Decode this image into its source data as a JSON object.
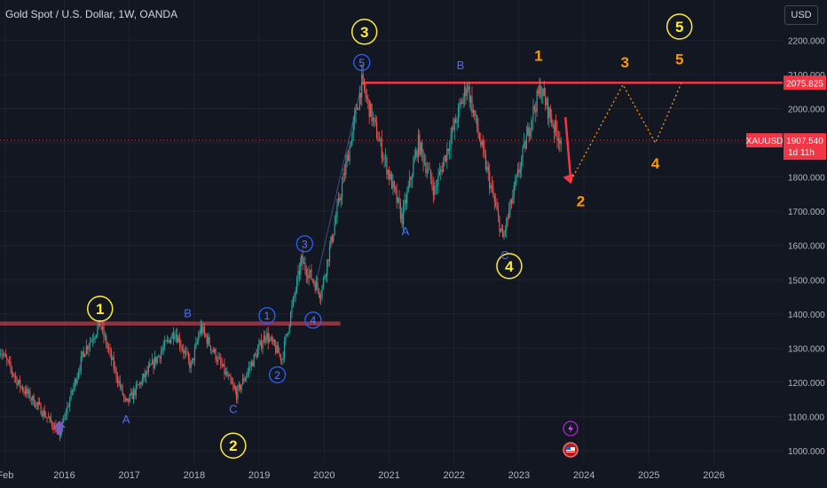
{
  "header": {
    "symbol_title": "Gold Spot / U.S. Dollar, 1W, OANDA"
  },
  "currency_button": "USD",
  "colors": {
    "background": "#131722",
    "grid": "#1e222d",
    "up": "#26a69a",
    "down": "#ef5350",
    "resistance": "#f23645",
    "wave_yellow": "#ffeb3b",
    "wave_blue": "#2962ff",
    "projection": "#ff9800"
  },
  "chart_data": {
    "type": "candlestick",
    "title": "Gold Spot / U.S. Dollar, 1W, OANDA",
    "xlabel": "",
    "ylabel": "",
    "y_axis_side": "right",
    "ylim": [
      967,
      2280
    ],
    "xlim": [
      2015.0,
      2027.3
    ],
    "grid": true,
    "y_ticks": [
      "2200.000",
      "2100.000",
      "2000.000",
      "1900.000",
      "1800.000",
      "1700.000",
      "1600.000",
      "1500.000",
      "1400.000",
      "1300.000",
      "1200.000",
      "1100.000",
      "1000.000"
    ],
    "y_tick_values": [
      2200,
      2100,
      2000,
      1900,
      1800,
      1700,
      1600,
      1500,
      1400,
      1300,
      1200,
      1100,
      1000
    ],
    "x_ticks": [
      "Feb",
      "2016",
      "2017",
      "2018",
      "2019",
      "2020",
      "2021",
      "2022",
      "2023",
      "2024",
      "2025",
      "2026"
    ],
    "x_tick_values": [
      2015.09,
      2016.0,
      2017.0,
      2018.0,
      2019.0,
      2020.0,
      2021.0,
      2022.0,
      2023.0,
      2024.0,
      2025.0,
      2026.0
    ],
    "price_path": [
      {
        "t": 2015.0,
        "p": 1300
      },
      {
        "t": 2015.3,
        "p": 1195
      },
      {
        "t": 2015.6,
        "p": 1130
      },
      {
        "t": 2015.93,
        "p": 1050
      },
      {
        "t": 2016.3,
        "p": 1290
      },
      {
        "t": 2016.55,
        "p": 1370
      },
      {
        "t": 2016.95,
        "p": 1135
      },
      {
        "t": 2017.7,
        "p": 1350
      },
      {
        "t": 2017.95,
        "p": 1245
      },
      {
        "t": 2018.1,
        "p": 1360
      },
      {
        "t": 2018.65,
        "p": 1165
      },
      {
        "t": 2019.1,
        "p": 1340
      },
      {
        "t": 2019.35,
        "p": 1270
      },
      {
        "t": 2019.65,
        "p": 1555
      },
      {
        "t": 2019.95,
        "p": 1460
      },
      {
        "t": 2020.2,
        "p": 1700
      },
      {
        "t": 2020.58,
        "p": 2075
      },
      {
        "t": 2021.2,
        "p": 1680
      },
      {
        "t": 2021.45,
        "p": 1900
      },
      {
        "t": 2021.7,
        "p": 1760
      },
      {
        "t": 2022.2,
        "p": 2070
      },
      {
        "t": 2022.75,
        "p": 1620
      },
      {
        "t": 2023.2,
        "p": 1980
      },
      {
        "t": 2023.33,
        "p": 2060
      },
      {
        "t": 2023.55,
        "p": 1940
      },
      {
        "t": 2023.66,
        "p": 1907.54
      }
    ],
    "series": [
      {
        "name": "XAUUSD",
        "last": "1907.540",
        "countdown": "1d 11h"
      }
    ],
    "resistance_level": {
      "value": "2075.825",
      "level": 2075.825
    },
    "support_level": {
      "level": 1372
    },
    "projection_path": [
      {
        "t": 2023.66,
        "p": 1907.54
      },
      {
        "t": 2023.8,
        "p": 1790
      },
      {
        "t": 2024.6,
        "p": 2070
      },
      {
        "t": 2025.1,
        "p": 1900
      },
      {
        "t": 2025.5,
        "p": 2075
      }
    ],
    "annotations": [
      {
        "text": "1",
        "style": "circle-yellow",
        "t": 2016.55,
        "p": 1415
      },
      {
        "text": "2",
        "style": "circle-yellow",
        "t": 2018.6,
        "p": 1015
      },
      {
        "text": "3",
        "style": "circle-yellow",
        "t": 2020.62,
        "p": 2225
      },
      {
        "text": "4",
        "style": "circle-yellow",
        "t": 2022.85,
        "p": 1540
      },
      {
        "text": "5",
        "style": "circle-yellow",
        "t": 2025.47,
        "p": 2240
      },
      {
        "text": "A",
        "style": "plain-blue",
        "t": 2016.95,
        "p": 1080
      },
      {
        "text": "B",
        "style": "plain-blue",
        "t": 2017.9,
        "p": 1390
      },
      {
        "text": "C",
        "style": "plain-blue",
        "t": 2018.6,
        "p": 1110
      },
      {
        "text": "1",
        "style": "circle-blue",
        "t": 2019.12,
        "p": 1395
      },
      {
        "text": "2",
        "style": "circle-blue",
        "t": 2019.28,
        "p": 1222
      },
      {
        "text": "3",
        "style": "circle-blue",
        "t": 2019.7,
        "p": 1605
      },
      {
        "text": "4",
        "style": "circle-blue",
        "t": 2019.83,
        "p": 1382
      },
      {
        "text": "5",
        "style": "circle-blue",
        "t": 2020.58,
        "p": 2135
      },
      {
        "text": "A",
        "style": "plain-blue",
        "t": 2021.25,
        "p": 1630
      },
      {
        "text": "B",
        "style": "plain-blue",
        "t": 2022.1,
        "p": 2115
      },
      {
        "text": "C",
        "style": "plain-blue",
        "t": 2022.78,
        "p": 1560
      },
      {
        "text": "1",
        "style": "plain-orange",
        "t": 2023.3,
        "p": 2140
      },
      {
        "text": "2",
        "style": "plain-orange",
        "t": 2023.95,
        "p": 1715
      },
      {
        "text": "3",
        "style": "plain-orange",
        "t": 2024.63,
        "p": 2120
      },
      {
        "text": "4",
        "style": "plain-orange",
        "t": 2025.1,
        "p": 1825
      },
      {
        "text": "5",
        "style": "plain-orange",
        "t": 2025.47,
        "p": 2130
      }
    ]
  }
}
